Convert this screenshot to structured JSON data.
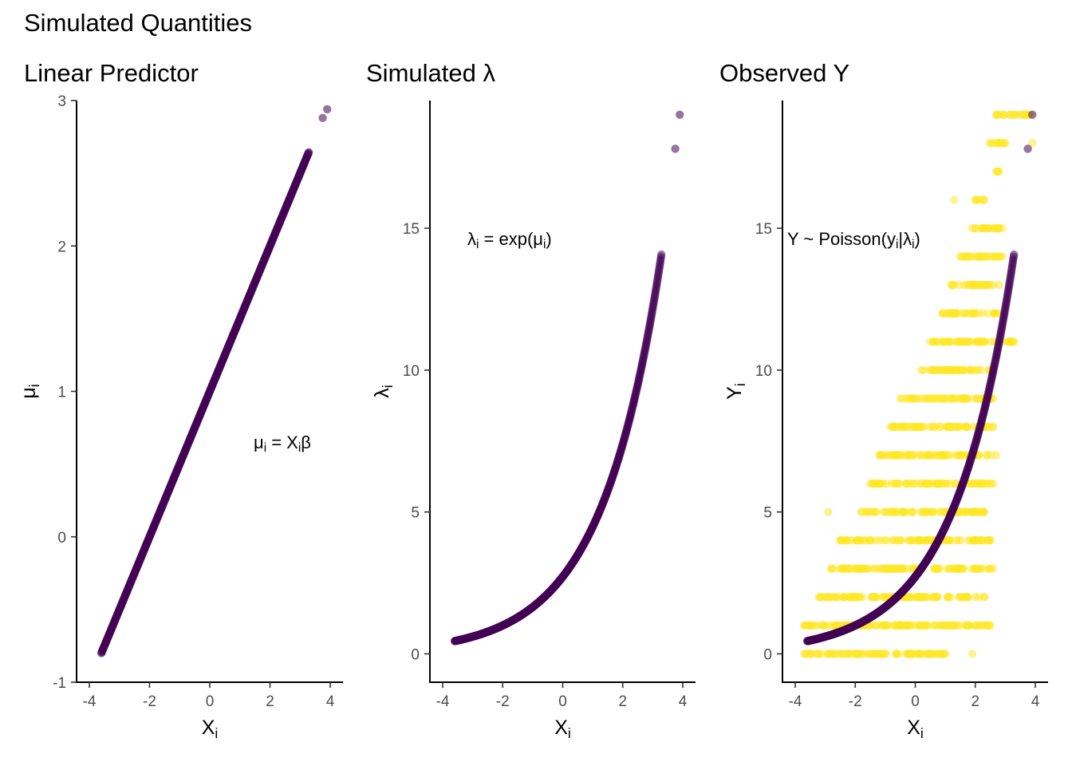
{
  "figure": {
    "title": "Simulated Quantities",
    "colors": {
      "latent": "#440154",
      "observed": "#FDE725"
    }
  },
  "chart_data": [
    {
      "type": "scatter",
      "title": "Linear Predictor",
      "xlabel": "Xi",
      "ylabel": "μi",
      "annotation": {
        "text": "μi = Xiβ",
        "x": 2.6,
        "y": 0.7
      },
      "xlim": [
        -4,
        4
      ],
      "ylim": [
        -1,
        3
      ],
      "xticks": [
        -4,
        -2,
        0,
        2,
        4
      ],
      "yticks": [
        -1,
        0,
        1,
        2,
        3
      ],
      "x_range": [
        -3.6,
        3.9
      ],
      "relationship": "mu = 1 + 0.5 * x",
      "outlier_points": [
        {
          "x": 3.75,
          "y": 2.88
        },
        {
          "x": 3.9,
          "y": 2.94
        }
      ],
      "series": [
        {
          "color": "#440154",
          "values_desc": "mu vs x"
        }
      ]
    },
    {
      "type": "scatter",
      "title": "Simulated λ",
      "xlabel": "Xi",
      "ylabel": "λi",
      "annotation": {
        "text": "λi = exp(μi)",
        "x": -1.4,
        "y": 15
      },
      "xlim": [
        -4,
        4
      ],
      "ylim": [
        -1,
        19.5
      ],
      "xticks": [
        -4,
        -2,
        0,
        2,
        4
      ],
      "yticks": [
        0,
        5,
        10,
        15
      ],
      "x_range": [
        -3.6,
        3.9
      ],
      "relationship": "lambda = exp(1 + 0.5 * x)",
      "outlier_points": [
        {
          "x": 3.75,
          "y": 17.8
        },
        {
          "x": 3.9,
          "y": 19.0
        }
      ],
      "series": [
        {
          "color": "#440154",
          "values_desc": "lambda vs x"
        }
      ]
    },
    {
      "type": "scatter",
      "title": "Observed Y",
      "xlabel": "Xi",
      "ylabel": "Yi",
      "annotation": {
        "text": "Y ~ Poisson(yi|λi)",
        "x": -1.0,
        "y": 15
      },
      "xlim": [
        -4,
        4
      ],
      "ylim": [
        -1,
        19.5
      ],
      "xticks": [
        -4,
        -2,
        0,
        2,
        4
      ],
      "yticks": [
        0,
        5,
        10,
        15
      ],
      "observed_rows": [
        {
          "y": 0,
          "x": [
            -3.7,
            1.0
          ]
        },
        {
          "y": 1,
          "x": [
            -3.7,
            2.5
          ]
        },
        {
          "y": 2,
          "x": [
            -3.2,
            2.3
          ]
        },
        {
          "y": 3,
          "x": [
            -2.8,
            2.5
          ]
        },
        {
          "y": 4,
          "x": [
            -2.5,
            2.5
          ]
        },
        {
          "y": 5,
          "x": [
            -1.8,
            2.3
          ]
        },
        {
          "y": 6,
          "x": [
            -1.5,
            2.6
          ]
        },
        {
          "y": 7,
          "x": [
            -1.2,
            2.7
          ]
        },
        {
          "y": 8,
          "x": [
            -0.8,
            2.6
          ]
        },
        {
          "y": 9,
          "x": [
            -0.5,
            2.6
          ]
        },
        {
          "y": 10,
          "x": [
            0.2,
            2.5
          ]
        },
        {
          "y": 11,
          "x": [
            0.5,
            3.3
          ]
        },
        {
          "y": 12,
          "x": [
            0.9,
            2.8
          ]
        },
        {
          "y": 13,
          "x": [
            1.2,
            2.8
          ]
        },
        {
          "y": 14,
          "x": [
            1.5,
            2.9
          ]
        },
        {
          "y": 15,
          "x": [
            1.9,
            2.9
          ]
        },
        {
          "y": 16,
          "x": [
            2.0,
            2.3
          ]
        },
        {
          "y": 17,
          "x": [
            2.7,
            2.8
          ]
        },
        {
          "y": 18,
          "x": [
            2.5,
            3.0
          ]
        },
        {
          "y": 19,
          "x": [
            2.7,
            3.8
          ]
        }
      ],
      "extra_observed_points": [
        {
          "x": -2.9,
          "y": 5
        },
        {
          "x": 1.3,
          "y": 16
        },
        {
          "x": 3.25,
          "y": 11
        },
        {
          "x": 3.9,
          "y": 18
        },
        {
          "x": 3.8,
          "y": 19
        },
        {
          "x": 2.6,
          "y": 18
        },
        {
          "x": 2.9,
          "y": 19
        },
        {
          "x": 1.9,
          "y": 0
        },
        {
          "x": 2.6,
          "y": 3
        }
      ],
      "latent_relationship": "lambda = exp(1 + 0.5 * x)",
      "outlier_points": [
        {
          "x": 3.75,
          "y": 17.8
        },
        {
          "x": 3.9,
          "y": 19.0
        }
      ],
      "series": [
        {
          "color": "#FDE725",
          "values_desc": "observed y"
        },
        {
          "color": "#440154",
          "values_desc": "lambda"
        }
      ]
    }
  ]
}
